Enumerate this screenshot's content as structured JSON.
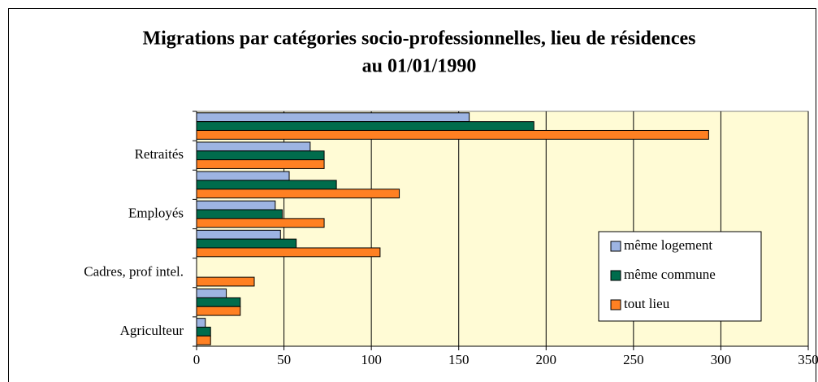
{
  "chart_data": {
    "type": "hbar",
    "title": [
      "Migrations par catégories socio-professionnelles, lieu de résidences",
      "au 01/01/1990"
    ],
    "categories": [
      "Agriculteur",
      null,
      "Cadres, prof intel.",
      null,
      "Employés",
      null,
      "Retraités",
      null
    ],
    "series": [
      {
        "name": "même logement",
        "color": "#9db4e2",
        "values": [
          5,
          17,
          0,
          48,
          45,
          53,
          65,
          156
        ]
      },
      {
        "name": "même commune",
        "color": "#006c4c",
        "values": [
          8,
          25,
          0,
          57,
          49,
          80,
          73,
          193
        ]
      },
      {
        "name": "tout lieu",
        "color": "#ff8022",
        "values": [
          8,
          25,
          33,
          105,
          73,
          116,
          73,
          293
        ]
      }
    ],
    "xlim": [
      0,
      350
    ],
    "xticks": [
      0,
      50,
      100,
      150,
      200,
      250,
      300,
      350
    ],
    "grid": true,
    "legend": "right"
  }
}
